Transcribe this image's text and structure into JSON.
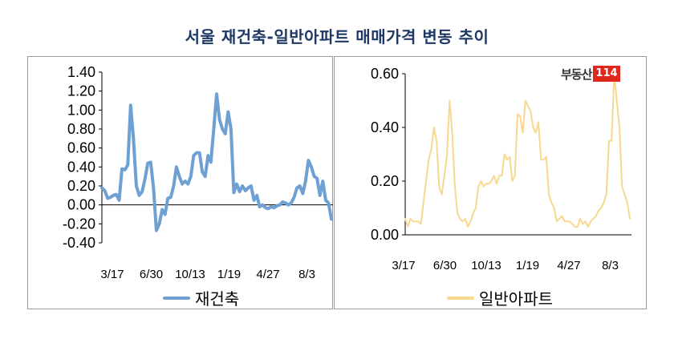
{
  "title": "서울 재건축-일반아파트 매매가격 변동 추이",
  "logo": {
    "text": "부동산",
    "number": "114"
  },
  "colors": {
    "series1": "#6fa0d3",
    "series2": "#f8d88e",
    "zero_line": "#000000",
    "title": "#1f3864"
  },
  "chart_data": [
    {
      "type": "line",
      "x_tick_labels": [
        "3/17",
        "6/30",
        "10/13",
        "1/19",
        "4/27",
        "8/3"
      ],
      "y_tick_labels": [
        "1.40",
        "1.20",
        "1.00",
        "0.80",
        "0.60",
        "0.40",
        "0.20",
        "0.00",
        "-0.20",
        "-0.40"
      ],
      "ylim": [
        -0.4,
        1.4
      ],
      "grid": false,
      "legend": "bottom",
      "series": [
        {
          "name": "재건축",
          "values": [
            0.18,
            0.15,
            0.07,
            0.08,
            0.1,
            0.11,
            0.05,
            0.38,
            0.37,
            0.42,
            1.05,
            0.7,
            0.2,
            0.1,
            0.14,
            0.27,
            0.44,
            0.45,
            0.18,
            -0.27,
            -0.2,
            -0.05,
            -0.1,
            0.07,
            0.08,
            0.2,
            0.4,
            0.3,
            0.22,
            0.25,
            0.22,
            0.3,
            0.52,
            0.55,
            0.55,
            0.35,
            0.3,
            0.52,
            0.45,
            0.8,
            1.17,
            0.9,
            0.8,
            0.75,
            0.98,
            0.8,
            0.13,
            0.22,
            0.14,
            0.2,
            0.15,
            0.18,
            0.2,
            0.05,
            0.1,
            -0.02,
            0.0,
            -0.03,
            -0.04,
            -0.02,
            -0.03,
            -0.01,
            0.0,
            0.03,
            0.02,
            0.0,
            0.02,
            0.08,
            0.18,
            0.2,
            0.12,
            0.25,
            0.47,
            0.4,
            0.3,
            0.28,
            0.1,
            0.25,
            0.05,
            0.02,
            -0.15
          ]
        }
      ]
    },
    {
      "type": "line",
      "x_tick_labels": [
        "3/17",
        "6/30",
        "10/13",
        "1/19",
        "4/27",
        "8/3"
      ],
      "y_tick_labels": [
        "0.60",
        "0.40",
        "0.20",
        "0.00"
      ],
      "ylim": [
        0.0,
        0.6
      ],
      "grid": false,
      "legend": "bottom",
      "series": [
        {
          "name": "일반아파트",
          "values": [
            0.06,
            0.03,
            0.06,
            0.05,
            0.05,
            0.05,
            0.04,
            0.12,
            0.2,
            0.28,
            0.32,
            0.4,
            0.35,
            0.18,
            0.15,
            0.22,
            0.3,
            0.5,
            0.38,
            0.18,
            0.08,
            0.06,
            0.05,
            0.06,
            0.03,
            0.05,
            0.08,
            0.1,
            0.18,
            0.2,
            0.18,
            0.19,
            0.19,
            0.2,
            0.22,
            0.19,
            0.22,
            0.22,
            0.3,
            0.28,
            0.29,
            0.2,
            0.22,
            0.45,
            0.44,
            0.38,
            0.5,
            0.48,
            0.46,
            0.4,
            0.38,
            0.42,
            0.28,
            0.28,
            0.29,
            0.15,
            0.12,
            0.1,
            0.05,
            0.06,
            0.07,
            0.05,
            0.05,
            0.05,
            0.04,
            0.03,
            0.03,
            0.06,
            0.04,
            0.05,
            0.03,
            0.05,
            0.06,
            0.07,
            0.09,
            0.1,
            0.12,
            0.15,
            0.35,
            0.35,
            0.6,
            0.5,
            0.4,
            0.18,
            0.15,
            0.12,
            0.06
          ]
        }
      ]
    }
  ]
}
